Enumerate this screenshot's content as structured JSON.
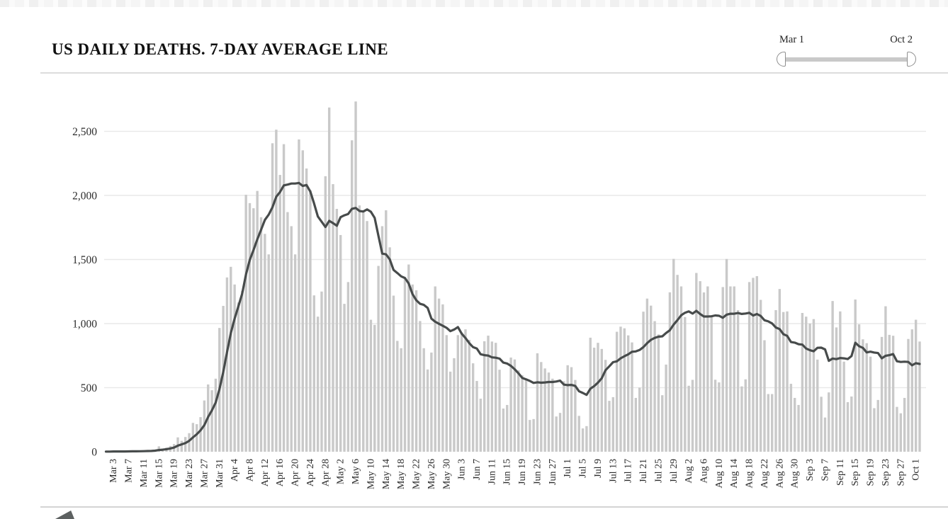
{
  "page": {
    "title": "US DAILY DEATHS. 7-DAY AVERAGE LINE"
  },
  "range_slider": {
    "start_label": "Mar 1",
    "end_label": "Oct 2"
  },
  "colors": {
    "bar": "#c9c9c9",
    "line": "#474b4b",
    "gridline": "#e9e9e9",
    "axis_text": "#2b2b2b",
    "separator": "#dcdcdc",
    "slider_track": "#c9c9c9",
    "slider_handle_border": "#8f8f8f"
  },
  "chart_data": {
    "type": "bar",
    "title": "US DAILY DEATHS. 7-DAY AVERAGE LINE",
    "start_date": "Mar 1",
    "end_date": "Oct 2",
    "grid": "horizontal",
    "legend": "none",
    "ylim": [
      0,
      2810
    ],
    "y_ticks": [
      0,
      500,
      1000,
      1500,
      2000,
      2500
    ],
    "y_tick_labels": [
      "0",
      "500",
      "1,000",
      "1,500",
      "2,000",
      "2,500"
    ],
    "x_tick_first_day_index": 2,
    "x_tick_step_days": 4,
    "x_tick_labels": [
      "Mar 3",
      "Mar 7",
      "Mar 11",
      "Mar 15",
      "Mar 19",
      "Mar 23",
      "Mar 27",
      "Mar 31",
      "Apr 4",
      "Apr 8",
      "Apr 12",
      "Apr 16",
      "Apr 20",
      "Apr 24",
      "Apr 28",
      "May 2",
      "May 6",
      "May 10",
      "May 14",
      "May 18",
      "May 22",
      "May 26",
      "May 30",
      "Jun 3",
      "Jun 7",
      "Jun 11",
      "Jun 15",
      "Jun 19",
      "Jun 23",
      "Jun 27",
      "Jul 1",
      "Jul 5",
      "Jul 9",
      "Jul 13",
      "Jul 17",
      "Jul 21",
      "Jul 25",
      "Jul 29",
      "Aug 2",
      "Aug 6",
      "Aug 10",
      "Aug 14",
      "Aug 18",
      "Aug 22",
      "Aug 26",
      "Aug 30",
      "Sep 3",
      "Sep 7",
      "Sep 11",
      "Sep 15",
      "Sep 19",
      "Sep 23",
      "Sep 27",
      "Oct 1"
    ],
    "series": [
      {
        "name": "Daily deaths",
        "type": "bar",
        "color": "#c9c9c9",
        "values": [
          1,
          1,
          4,
          3,
          2,
          3,
          4,
          5,
          4,
          6,
          7,
          10,
          8,
          17,
          42,
          24,
          33,
          45,
          60,
          112,
          85,
          115,
          145,
          225,
          215,
          270,
          400,
          525,
          480,
          570,
          966,
          1138,
          1360,
          1443,
          1305,
          1165,
          1255,
          2005,
          1940,
          1900,
          2035,
          1830,
          1700,
          1540,
          2407,
          2513,
          2160,
          2400,
          1870,
          1760,
          1540,
          2437,
          2352,
          2210,
          2040,
          1220,
          1054,
          1250,
          2150,
          2686,
          2088,
          1895,
          1691,
          1154,
          1324,
          2430,
          2733,
          1922,
          1870,
          1800,
          1030,
          990,
          1450,
          1760,
          1884,
          1595,
          1218,
          865,
          808,
          1360,
          1461,
          1305,
          1260,
          1020,
          808,
          642,
          774,
          1290,
          1195,
          1150,
          910,
          625,
          730,
          910,
          930,
          955,
          873,
          690,
          552,
          414,
          862,
          906,
          860,
          850,
          640,
          337,
          365,
          735,
          720,
          635,
          597,
          569,
          248,
          255,
          768,
          700,
          650,
          618,
          570,
          275,
          303,
          550,
          675,
          660,
          560,
          280,
          182,
          200,
          890,
          812,
          850,
          802,
          717,
          397,
          426,
          936,
          976,
          963,
          908,
          853,
          420,
          500,
          1093,
          1195,
          1140,
          1019,
          916,
          441,
          680,
          1244,
          1505,
          1380,
          1290,
          1051,
          515,
          561,
          1395,
          1331,
          1243,
          1290,
          1064,
          562,
          541,
          1285,
          1504,
          1290,
          1290,
          1105,
          510,
          565,
          1324,
          1357,
          1370,
          1185,
          870,
          450,
          450,
          1105,
          1270,
          1090,
          1095,
          530,
          420,
          365,
          1083,
          1054,
          1000,
          1035,
          719,
          429,
          267,
          463,
          1176,
          970,
          1095,
          703,
          387,
          431,
          1188,
          994,
          877,
          847,
          742,
          340,
          404,
          896,
          1135,
          912,
          905,
          350,
          300,
          420,
          880,
          955,
          1030,
          860
        ]
      },
      {
        "name": "7-day average",
        "type": "line",
        "color": "#474b4b",
        "derived_from": "Daily deaths",
        "window": 7
      }
    ]
  }
}
